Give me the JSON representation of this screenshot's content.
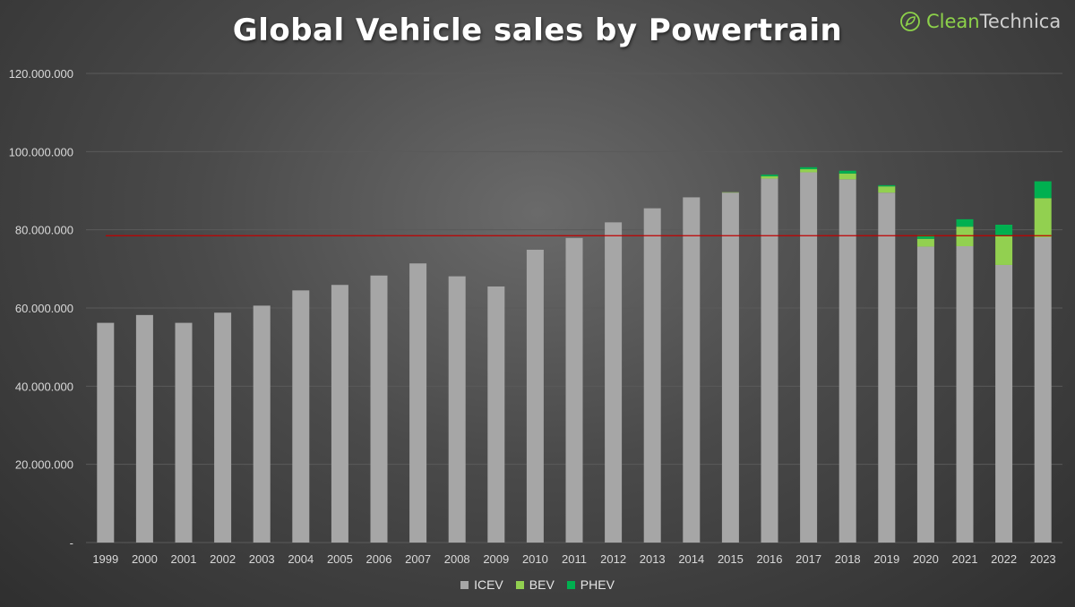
{
  "title": "Global Vehicle sales by Powertrain",
  "logo": {
    "part1": "Clean",
    "part2": "Technica",
    "icon": "plug-leaf-icon"
  },
  "colors": {
    "ICEV": "#a6a6a6",
    "BEV": "#92d050",
    "PHEV": "#00b050",
    "refline": "#c00000",
    "grid": "#5a5a5a",
    "axis_text": "#d9d9d9"
  },
  "chart_data": {
    "type": "bar",
    "stacked": true,
    "title": "Global Vehicle sales by Powertrain",
    "xlabel": "",
    "ylabel": "",
    "ylim": [
      0,
      120000000
    ],
    "yticks": [
      0,
      20000000,
      40000000,
      60000000,
      80000000,
      100000000,
      120000000
    ],
    "ytick_labels": [
      "-",
      "20.000.000",
      "40.000.000",
      "60.000.000",
      "80.000.000",
      "100.000.000",
      "120.000.000"
    ],
    "grid": true,
    "legend_position": "bottom",
    "categories": [
      "1999",
      "2000",
      "2001",
      "2002",
      "2003",
      "2004",
      "2005",
      "2006",
      "2007",
      "2008",
      "2009",
      "2010",
      "2011",
      "2012",
      "2013",
      "2014",
      "2015",
      "2016",
      "2017",
      "2018",
      "2019",
      "2020",
      "2021",
      "2022",
      "2023"
    ],
    "series": [
      {
        "name": "ICEV",
        "values": [
          56200000,
          58200000,
          56200000,
          58800000,
          60600000,
          64500000,
          65900000,
          68300000,
          71400000,
          68100000,
          65500000,
          74900000,
          77900000,
          81900000,
          85500000,
          88300000,
          89500000,
          93100000,
          94700000,
          92900000,
          89500000,
          75700000,
          75800000,
          71000000,
          78100000
        ]
      },
      {
        "name": "BEV",
        "values": [
          0,
          0,
          0,
          0,
          0,
          0,
          0,
          0,
          0,
          0,
          0,
          0,
          0,
          0,
          0,
          0,
          100000,
          600000,
          800000,
          1500000,
          1600000,
          2000000,
          5000000,
          7400000,
          10000000
        ]
      },
      {
        "name": "PHEV",
        "values": [
          0,
          0,
          0,
          0,
          0,
          0,
          0,
          0,
          0,
          0,
          0,
          0,
          0,
          0,
          0,
          0,
          0,
          400000,
          500000,
          700000,
          300000,
          1000000,
          1900000,
          2900000,
          4300000
        ]
      }
    ],
    "reference_line": {
      "y": 78500000,
      "from": "1999",
      "to": "2023"
    }
  }
}
